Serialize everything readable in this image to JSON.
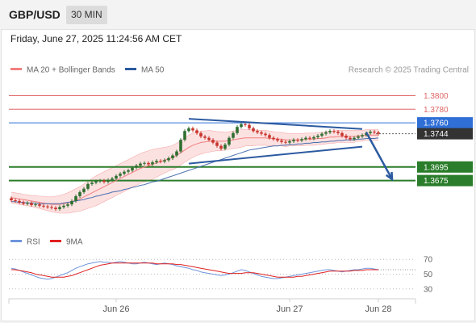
{
  "header": {
    "symbol": "GBP/USD",
    "interval": "30 MIN"
  },
  "timestamp": "Friday, June 27, 2025 11:24:56 AM CET",
  "legend": {
    "ma20": "MA 20 + Bollinger Bands",
    "ma50": "MA 50",
    "credit": "Research © 2025 Trading Central",
    "rsi": "RSI",
    "rsi_ma": "9MA"
  },
  "colors": {
    "up_candle": "#2f6e2f",
    "down_candle": "#c8342c",
    "ma20": "#f08080",
    "ma50": "#4a6fb0",
    "bollinger_fill": "#fbd9d9",
    "resistance": "#e06666",
    "pivot": "#2f6fd6",
    "support": "#2a7d2a",
    "current_price_bg": "#333333",
    "trend_arrow": "#2c5aa0",
    "rsi_line": "#6f95dc",
    "rsi_ma_line": "#e02020"
  },
  "chart_data": {
    "type": "candlestick",
    "price_axis": {
      "min": 1.3608,
      "max": 1.3822
    },
    "levels": [
      {
        "label": "1.3800",
        "value": 1.38,
        "kind": "resistance"
      },
      {
        "label": "1.3780",
        "value": 1.378,
        "kind": "resistance"
      },
      {
        "label": "1.3760",
        "value": 1.376,
        "kind": "pivot"
      },
      {
        "label": "1.3744",
        "value": 1.3744,
        "kind": "current"
      },
      {
        "label": "1.3695",
        "value": 1.3695,
        "kind": "support"
      },
      {
        "label": "1.3675",
        "value": 1.3675,
        "kind": "support"
      }
    ],
    "x_labels": [
      "Jun 26",
      "Jun 27",
      "Jun 28"
    ],
    "x_label_index": [
      26,
      69,
      91
    ],
    "candle_count": 92,
    "closes": [
      1.3646,
      1.3645,
      1.3643,
      1.3641,
      1.3642,
      1.3639,
      1.364,
      1.3638,
      1.3637,
      1.3636,
      1.3635,
      1.3633,
      1.3636,
      1.3638,
      1.364,
      1.3645,
      1.3652,
      1.3658,
      1.3663,
      1.367,
      1.3672,
      1.3674,
      1.3675,
      1.3673,
      1.3676,
      1.3678,
      1.3682,
      1.3685,
      1.3688,
      1.369,
      1.3694,
      1.3697,
      1.37,
      1.3701,
      1.3699,
      1.3702,
      1.3704,
      1.3703,
      1.3705,
      1.3708,
      1.3712,
      1.3718,
      1.3735,
      1.3748,
      1.3752,
      1.3749,
      1.3745,
      1.374,
      1.3738,
      1.3735,
      1.3731,
      1.3726,
      1.3722,
      1.3728,
      1.3738,
      1.3745,
      1.3754,
      1.3758,
      1.3757,
      1.3752,
      1.3748,
      1.3746,
      1.3744,
      1.3742,
      1.3738,
      1.3736,
      1.3734,
      1.3732,
      1.3731,
      1.3733,
      1.3735,
      1.3734,
      1.3736,
      1.3738,
      1.3737,
      1.3739,
      1.3741,
      1.3744,
      1.3746,
      1.3748,
      1.3747,
      1.3745,
      1.3741,
      1.3738,
      1.3736,
      1.3738,
      1.374,
      1.3742,
      1.3745,
      1.3747,
      1.3746,
      1.3744
    ],
    "ma20": [
      1.365,
      1.3649,
      1.3648,
      1.3647,
      1.3646,
      1.3645,
      1.3644,
      1.3643,
      1.3642,
      1.3641,
      1.364,
      1.364,
      1.364,
      1.3641,
      1.3642,
      1.3644,
      1.3646,
      1.3648,
      1.3651,
      1.3654,
      1.3657,
      1.366,
      1.3663,
      1.3666,
      1.3669,
      1.3672,
      1.3675,
      1.3678,
      1.3681,
      1.3684,
      1.3687,
      1.369,
      1.3693,
      1.3695,
      1.3697,
      1.3699,
      1.3701,
      1.3703,
      1.3705,
      1.3707,
      1.3709,
      1.3712,
      1.3716,
      1.372,
      1.3724,
      1.3727,
      1.3729,
      1.3731,
      1.3732,
      1.3733,
      1.3733,
      1.3733,
      1.3733,
      1.3733,
      1.3734,
      1.3735,
      1.3736,
      1.3737,
      1.3738,
      1.3738,
      1.3738,
      1.3738,
      1.3738,
      1.3738,
      1.3737,
      1.3737,
      1.3736,
      1.3736,
      1.3735,
      1.3735,
      1.3735,
      1.3735,
      1.3735,
      1.3736,
      1.3736,
      1.3736,
      1.3737,
      1.3737,
      1.3738,
      1.3739,
      1.3739,
      1.374,
      1.374,
      1.374,
      1.374,
      1.374,
      1.3741,
      1.3741,
      1.3742,
      1.3742,
      1.3742,
      1.3742
    ],
    "band_width": [
      0.0008,
      0.0008,
      0.0008,
      0.0008,
      0.0008,
      0.0008,
      0.0009,
      0.0009,
      0.001,
      0.001,
      0.0011,
      0.0012,
      0.0013,
      0.0014,
      0.0015,
      0.0016,
      0.0017,
      0.0018,
      0.0019,
      0.002,
      0.0021,
      0.0022,
      0.0022,
      0.0022,
      0.0022,
      0.0022,
      0.0022,
      0.0022,
      0.0022,
      0.0022,
      0.0022,
      0.0022,
      0.0022,
      0.0022,
      0.0022,
      0.0022,
      0.0021,
      0.002,
      0.0019,
      0.0018,
      0.0018,
      0.0018,
      0.0018,
      0.0018,
      0.0018,
      0.0018,
      0.0017,
      0.0017,
      0.0016,
      0.0016,
      0.0015,
      0.0014,
      0.0014,
      0.0013,
      0.0013,
      0.0013,
      0.0013,
      0.0013,
      0.0012,
      0.0012,
      0.0012,
      0.0011,
      0.0011,
      0.0011,
      0.0011,
      0.001,
      0.001,
      0.001,
      0.001,
      0.0009,
      0.0009,
      0.0009,
      0.0009,
      0.0009,
      0.0009,
      0.0009,
      0.0009,
      0.0009,
      0.0009,
      0.0009,
      0.0009,
      0.0009,
      0.0009,
      0.0009,
      0.0009,
      0.0009,
      0.0008,
      0.0008,
      0.0008,
      0.0008,
      0.0008,
      0.0008
    ],
    "ma50": [
      1.3644,
      1.3644,
      1.3643,
      1.3643,
      1.3642,
      1.3642,
      1.3642,
      1.3641,
      1.3641,
      1.3641,
      1.3641,
      1.3641,
      1.3641,
      1.3642,
      1.3643,
      1.3644,
      1.3645,
      1.3646,
      1.3647,
      1.3649,
      1.365,
      1.3652,
      1.3653,
      1.3655,
      1.3656,
      1.3658,
      1.3659,
      1.366,
      1.3662,
      1.3663,
      1.3665,
      1.3666,
      1.3668,
      1.3669,
      1.3671,
      1.3673,
      1.3674,
      1.3676,
      1.3678,
      1.368,
      1.3682,
      1.3684,
      1.3686,
      1.3688,
      1.369,
      1.3692,
      1.3694,
      1.3696,
      1.3698,
      1.37,
      1.3702,
      1.3704,
      1.3706,
      1.3708,
      1.371,
      1.3712,
      1.3714,
      1.3716,
      1.3718,
      1.372,
      1.3721,
      1.3722,
      1.3723,
      1.3724,
      1.3725,
      1.3726,
      1.3726,
      1.3727,
      1.3727,
      1.3728,
      1.3728,
      1.3729,
      1.3729,
      1.373,
      1.373,
      1.3731,
      1.3731,
      1.3732,
      1.3732,
      1.3733,
      1.3733,
      1.3734,
      1.3734,
      1.3735,
      1.3735,
      1.3735,
      1.3736,
      1.3736,
      1.3737,
      1.3737,
      1.3737,
      1.3738
    ],
    "channel": {
      "upper": [
        [
          44,
          1.3766
        ],
        [
          87,
          1.3751
        ]
      ],
      "lower": [
        [
          44,
          1.37
        ],
        [
          87,
          1.3725
        ]
      ]
    },
    "arrow": {
      "from": [
        88,
        1.3746
      ],
      "to": [
        93,
        1.3677
      ]
    },
    "rsi_axis": {
      "ticks": [
        70,
        50,
        30
      ],
      "min": 20,
      "max": 80
    },
    "rsi": [
      58,
      57,
      55,
      53,
      51,
      49,
      47,
      45,
      44,
      43,
      44,
      46,
      48,
      50,
      52,
      55,
      58,
      60,
      62,
      64,
      65,
      66,
      67,
      66,
      66,
      65,
      66,
      67,
      66,
      65,
      64,
      64,
      65,
      66,
      65,
      64,
      63,
      64,
      65,
      64,
      63,
      61,
      60,
      59,
      58,
      56,
      55,
      53,
      52,
      51,
      50,
      49,
      48,
      49,
      50,
      52,
      54,
      56,
      55,
      53,
      51,
      49,
      47,
      46,
      45,
      44,
      44,
      45,
      46,
      47,
      48,
      49,
      50,
      51,
      52,
      53,
      54,
      55,
      56,
      56,
      55,
      54,
      53,
      54,
      55,
      56,
      56,
      57,
      58,
      58,
      57,
      56
    ],
    "rsi_ma": [
      56,
      56,
      55,
      54,
      53,
      52,
      50,
      49,
      48,
      47,
      46,
      46,
      46,
      46,
      47,
      48,
      50,
      52,
      54,
      56,
      58,
      60,
      62,
      63,
      64,
      65,
      65,
      65,
      65,
      65,
      65,
      65,
      65,
      65,
      65,
      65,
      64,
      64,
      64,
      64,
      64,
      63,
      63,
      62,
      61,
      60,
      59,
      58,
      57,
      56,
      55,
      54,
      53,
      52,
      51,
      51,
      51,
      51,
      52,
      52,
      52,
      51,
      50,
      49,
      48,
      47,
      46,
      46,
      46,
      46,
      46,
      47,
      47,
      48,
      49,
      50,
      51,
      52,
      53,
      54,
      54,
      54,
      54,
      54,
      54,
      55,
      55,
      55,
      56,
      56,
      56,
      56
    ]
  }
}
